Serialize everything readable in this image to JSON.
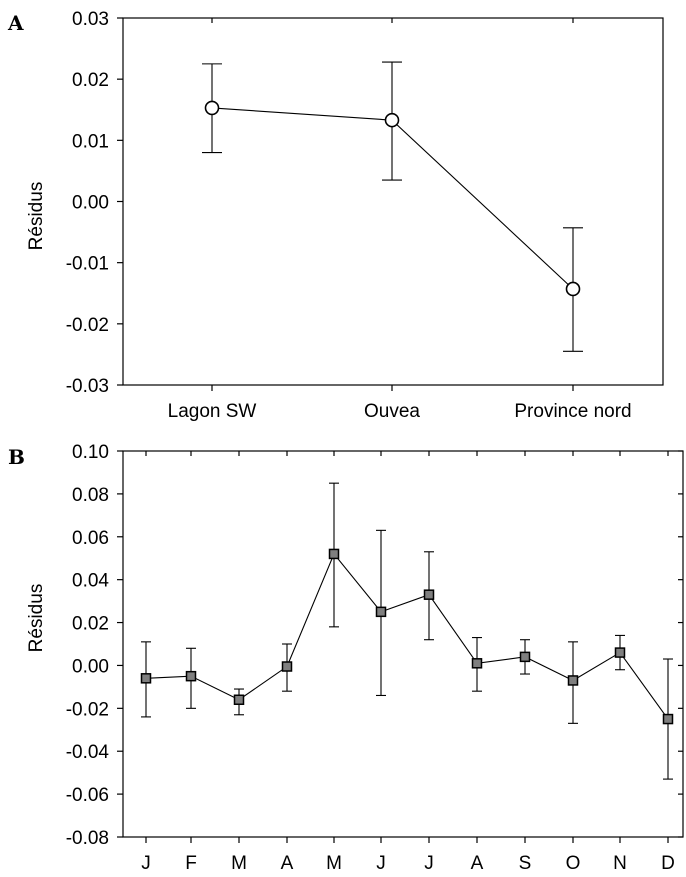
{
  "chart_data": [
    {
      "panel": "A",
      "type": "line",
      "ylabel": "Résidus",
      "xlabel": "",
      "ylim": [
        -0.03,
        0.03
      ],
      "yticks": [
        "-0.03",
        "-0.02",
        "-0.01",
        "0.00",
        "0.01",
        "0.02",
        "0.03"
      ],
      "categories": [
        "Lagon SW",
        "Ouvea",
        "Province nord"
      ],
      "values": [
        0.0153,
        0.0133,
        -0.0143
      ],
      "error_low": [
        0.008,
        0.0035,
        -0.0245
      ],
      "error_high": [
        0.0225,
        0.0228,
        -0.0043
      ],
      "marker": "open-circle"
    },
    {
      "panel": "B",
      "type": "line",
      "ylabel": "Résidus",
      "xlabel": "",
      "ylim": [
        -0.08,
        0.1
      ],
      "yticks": [
        "-0.08",
        "-0.06",
        "-0.04",
        "-0.02",
        "0.00",
        "0.02",
        "0.04",
        "0.06",
        "0.08",
        "0.10"
      ],
      "categories": [
        "J",
        "F",
        "M",
        "A",
        "M",
        "J",
        "J",
        "A",
        "S",
        "O",
        "N",
        "D"
      ],
      "values": [
        -0.006,
        -0.005,
        -0.016,
        -0.0005,
        0.052,
        0.025,
        0.033,
        0.001,
        0.004,
        -0.007,
        0.006,
        -0.025
      ],
      "error_low": [
        -0.024,
        -0.02,
        -0.023,
        -0.012,
        0.018,
        -0.014,
        0.012,
        -0.012,
        -0.004,
        -0.027,
        -0.002,
        -0.053
      ],
      "error_high": [
        0.011,
        0.008,
        -0.011,
        0.01,
        0.085,
        0.063,
        0.053,
        0.013,
        0.012,
        0.011,
        0.014,
        0.003
      ],
      "marker": "filled-square",
      "marker_color": "#7f7f7f"
    }
  ]
}
